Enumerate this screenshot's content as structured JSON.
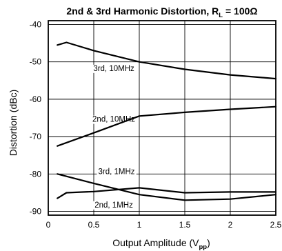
{
  "chart_data": {
    "type": "line",
    "title": {
      "main": "2nd & 3rd Harmonic Distortion, R",
      "sub": "L",
      "tail": " = 100Ω"
    },
    "xlabel": {
      "main": "Output Amplitude (V",
      "sub": "pp",
      "tail": ")"
    },
    "ylabel": "Distortion (dBc)",
    "xlim": [
      0,
      2.5
    ],
    "ylim": [
      -91,
      -39
    ],
    "x_ticks": [
      {
        "value": 0,
        "label": "0"
      },
      {
        "value": 0.5,
        "label": "0.5"
      },
      {
        "value": 1,
        "label": "1"
      },
      {
        "value": 1.5,
        "label": "1.5"
      },
      {
        "value": 2,
        "label": "2"
      },
      {
        "value": 2.5,
        "label": "2.5"
      }
    ],
    "y_ticks": [
      {
        "value": -40,
        "label": "-40"
      },
      {
        "value": -50,
        "label": "-50"
      },
      {
        "value": -60,
        "label": "-60"
      },
      {
        "value": -70,
        "label": "-70"
      },
      {
        "value": -80,
        "label": "-80"
      },
      {
        "value": -90,
        "label": "-90"
      }
    ],
    "grid": true,
    "series": [
      {
        "name": "3rd, 10MHz",
        "x": [
          0.1,
          0.2,
          0.5,
          1.0,
          1.5,
          2.0,
          2.5
        ],
        "y": [
          -45.5,
          -44.8,
          -47.0,
          -50.0,
          -52.0,
          -53.5,
          -54.5
        ],
        "label_at": [
          0.72,
          -51.7
        ]
      },
      {
        "name": "2nd, 10MHz",
        "x": [
          0.1,
          0.5,
          1.0,
          1.5,
          2.0,
          2.5
        ],
        "y": [
          -72.5,
          -69.0,
          -64.5,
          -63.5,
          -62.7,
          -62.0
        ],
        "label_at": [
          0.72,
          -65.3
        ]
      },
      {
        "name": "3rd, 1MHz",
        "x": [
          0.1,
          0.5,
          1.0,
          1.5,
          2.0,
          2.5
        ],
        "y": [
          -80.0,
          -82.5,
          -85.5,
          -87.0,
          -86.7,
          -85.5
        ],
        "label_at": [
          0.75,
          -79.3
        ]
      },
      {
        "name": "2nd, 1MHz",
        "x": [
          0.1,
          0.2,
          0.5,
          1.0,
          1.5,
          2.0,
          2.5
        ],
        "y": [
          -86.5,
          -85.0,
          -84.7,
          -83.7,
          -85.0,
          -84.8,
          -84.8
        ],
        "label_at": [
          0.72,
          -88.2
        ]
      }
    ]
  }
}
